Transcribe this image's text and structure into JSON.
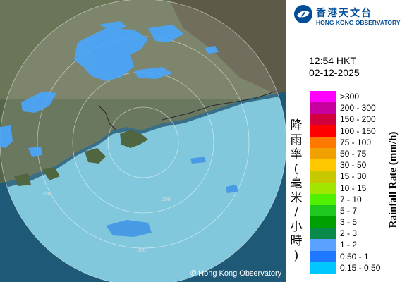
{
  "header": {
    "org_name_cn": "香港天文台",
    "org_name_en": "HONG KONG OBSERVATORY",
    "brand_color": "#004c97"
  },
  "observation": {
    "time": "12:54 HKT",
    "date": "02-12-2025"
  },
  "legend": {
    "title_cn": "降雨率(毫米/小時)",
    "title_en": "Rainfall Rate (mm/h)",
    "items": [
      {
        "label": ">300",
        "color": "#ff00ff"
      },
      {
        "label": "200 - 300",
        "color": "#c800a0"
      },
      {
        "label": "150 - 200",
        "color": "#d2003c"
      },
      {
        "label": "100 - 150",
        "color": "#ff0000"
      },
      {
        "label": "75 - 100",
        "color": "#ff7800"
      },
      {
        "label": "50 - 75",
        "color": "#f0a000"
      },
      {
        "label": "30 - 50",
        "color": "#ffc800"
      },
      {
        "label": "15 - 30",
        "color": "#c8c800"
      },
      {
        "label": "10 - 15",
        "color": "#a0e600"
      },
      {
        "label": "7 - 10",
        "color": "#50f000"
      },
      {
        "label": "5 - 7",
        "color": "#1ec81e"
      },
      {
        "label": "3 - 5",
        "color": "#00a000"
      },
      {
        "label": "2 - 3",
        "color": "#0a8a4a"
      },
      {
        "label": "1 - 2",
        "color": "#5aa0ff"
      },
      {
        "label": "0.50 - 1",
        "color": "#1e78ff"
      },
      {
        "label": "0.15 - 0.50",
        "color": "#00c8ff"
      }
    ]
  },
  "map": {
    "range_ring_labels": [
      "200",
      "200",
      "200"
    ],
    "copyright": "© Hong Kong Observatory"
  }
}
